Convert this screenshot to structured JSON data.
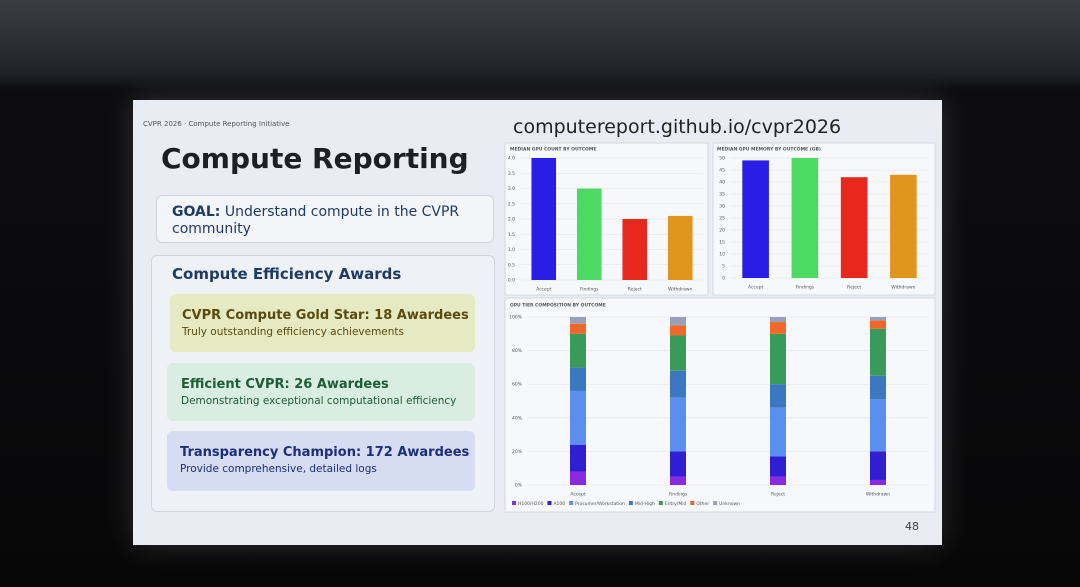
{
  "header": {
    "label": "CVPR 2026 · Compute Reporting Initiative",
    "title": "Compute Reporting",
    "url": "computereport.github.io/cvpr2026",
    "page_number": "48"
  },
  "goal": {
    "label": "GOAL:",
    "text": "Understand compute in the CVPR community"
  },
  "awards": {
    "title": "Compute Efficiency Awards",
    "items": [
      {
        "title": "CVPR Compute Gold Star: 18 Awardees",
        "description": "Truly outstanding efficiency achievements"
      },
      {
        "title": "Efficient CVPR: 26 Awardees",
        "description": "Demonstrating exceptional computational efficiency"
      },
      {
        "title": "Transparency Champion: 172 Awardees",
        "description": "Provide comprehensive, detailed logs"
      }
    ]
  },
  "chart_data": [
    {
      "type": "bar",
      "title": "MEDIAN GPU COUNT BY OUTCOME",
      "categories": [
        "Accept",
        "Findings",
        "Reject",
        "Withdrawn"
      ],
      "values": [
        4.0,
        3.0,
        2.0,
        2.1
      ],
      "colors": [
        "#2a1ee6",
        "#4cd964",
        "#e8281c",
        "#e0961c"
      ],
      "ylim": [
        0,
        4.0
      ],
      "yticks": [
        {
          "value": 0,
          "label": "0.0"
        },
        {
          "value": 0.5,
          "label": "0.5"
        },
        {
          "value": 1,
          "label": "1.0"
        },
        {
          "value": 1.5,
          "label": "1.5"
        },
        {
          "value": 2,
          "label": "2.0"
        },
        {
          "value": 2.5,
          "label": "2.5"
        },
        {
          "value": 3,
          "label": "3.0"
        },
        {
          "value": 3.5,
          "label": "3.5"
        },
        {
          "value": 4,
          "label": "4.0"
        }
      ],
      "grid": true
    },
    {
      "type": "bar",
      "title": "MEDIAN GPU MEMORY BY OUTCOME (GB)",
      "categories": [
        "Accept",
        "Findings",
        "Reject",
        "Withdrawn"
      ],
      "values": [
        49,
        50,
        42,
        43
      ],
      "colors": [
        "#2a1ee6",
        "#4cd964",
        "#e8281c",
        "#e0961c"
      ],
      "ylim": [
        0,
        50
      ],
      "yticks": [
        0,
        5,
        10,
        15,
        20,
        25,
        30,
        35,
        40,
        45,
        50
      ],
      "grid": true
    },
    {
      "type": "stacked_bar",
      "title": "GPU TIER COMPOSITION BY OUTCOME",
      "categories": [
        "Accept",
        "Findings",
        "Reject",
        "Withdrawn"
      ],
      "series": [
        {
          "name": "H100/H200",
          "color": "#8a2be2",
          "values": [
            8,
            5,
            5,
            3
          ]
        },
        {
          "name": "A100",
          "color": "#2f1fd0",
          "values": [
            16,
            15,
            12,
            17
          ]
        },
        {
          "name": "Prosumer/Workstation",
          "color": "#5a8ff0",
          "values": [
            32,
            32,
            29,
            31
          ]
        },
        {
          "name": "Mid-High",
          "color": "#3c78c0",
          "values": [
            14,
            16,
            14,
            14
          ]
        },
        {
          "name": "Entry/Mid",
          "color": "#3a9a5a",
          "values": [
            20,
            21,
            30,
            28
          ]
        },
        {
          "name": "Other",
          "color": "#f0682a",
          "values": [
            6,
            6,
            7,
            5
          ]
        },
        {
          "name": "Unknown",
          "color": "#9aa0b8",
          "values": [
            4,
            5,
            3,
            2
          ]
        }
      ],
      "ylim": [
        0,
        100
      ],
      "yticks": [
        {
          "value": 0,
          "label": "0%"
        },
        {
          "value": 20,
          "label": "20%"
        },
        {
          "value": 40,
          "label": "40%"
        },
        {
          "value": 60,
          "label": "60%"
        },
        {
          "value": 80,
          "label": "80%"
        },
        {
          "value": 100,
          "label": "100%"
        }
      ],
      "grid": true
    }
  ]
}
